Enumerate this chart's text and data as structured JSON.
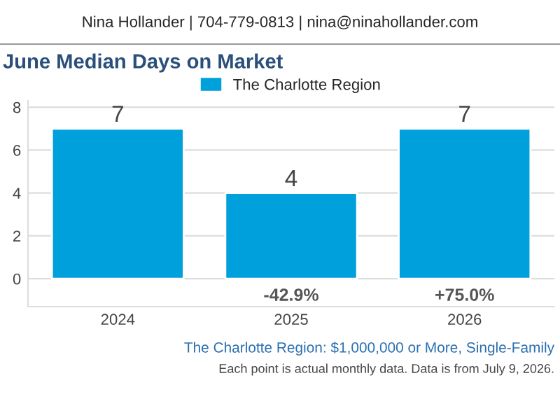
{
  "chart_data": {
    "type": "bar",
    "title": "June Median Days on Market",
    "subtitle": "Nina Hollander | 704-779-0813 | nina@ninahollander.com",
    "categories": [
      "2024",
      "2025",
      "2026"
    ],
    "series": [
      {
        "name": "The Charlotte Region",
        "color": "#00a0dc",
        "values": [
          7,
          4,
          7
        ]
      }
    ],
    "ylim": [
      -1.3,
      8.3
    ],
    "yticks": [
      0,
      2,
      4,
      6,
      8
    ],
    "grid": "y",
    "legend": "top",
    "data_labels": true,
    "annotations": [
      "-42.9%",
      "+75.0%",
      "The Charlotte Region: $1,000,000 or More, Single-Family",
      "Each point is actual monthly data. Data is from July 9, 2026."
    ]
  }
}
